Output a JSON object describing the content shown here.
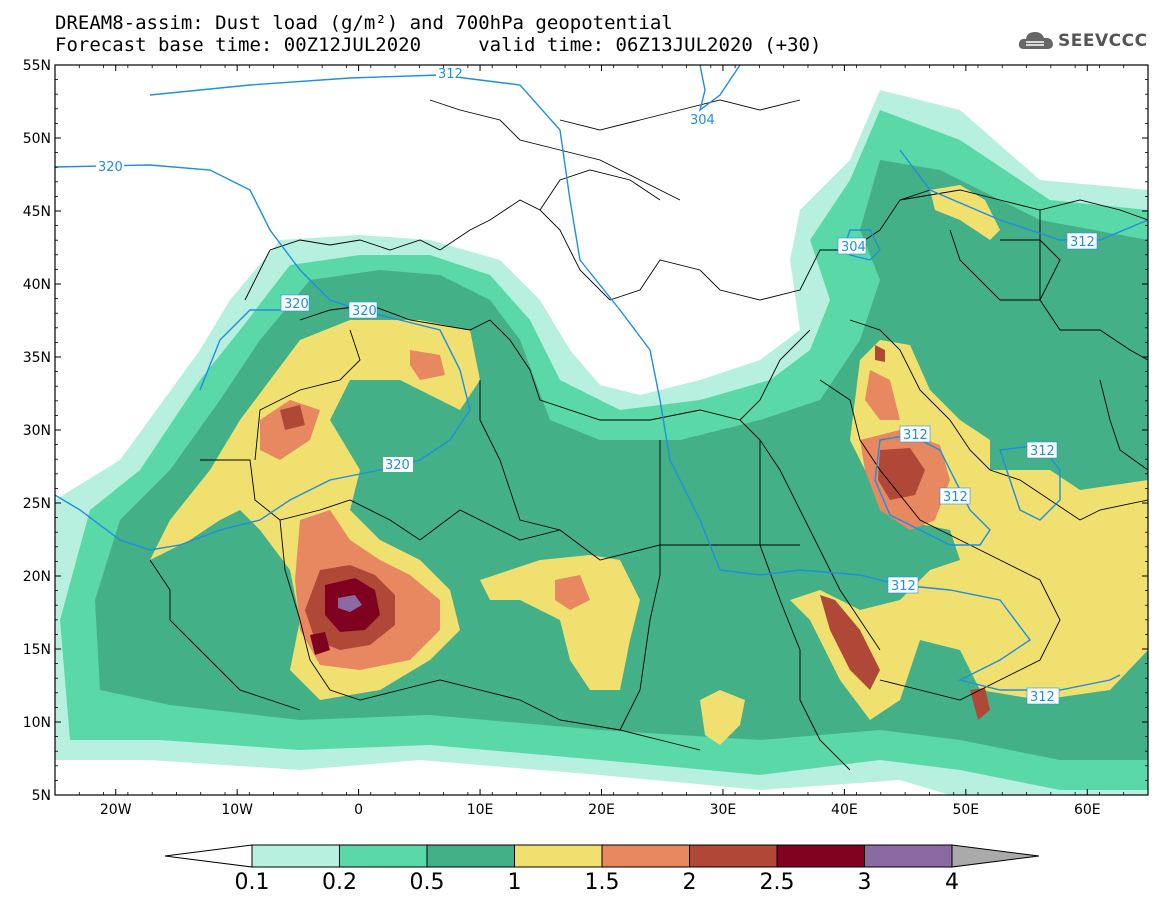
{
  "title": {
    "line1": "DREAM8-assim: Dust load (g/m²) and 700hPa geopotential",
    "line2": "Forecast base time: 00Z12JUL2020     valid time: 06Z13JUL2020 (+30)"
  },
  "logo": {
    "text": "SEEVCCC",
    "icon": "cloud-logo-icon"
  },
  "axes": {
    "lat_labels": [
      "55N",
      "50N",
      "45N",
      "40N",
      "35N",
      "30N",
      "25N",
      "20N",
      "15N",
      "10N",
      "5N"
    ],
    "lon_labels": [
      "20W",
      "10W",
      "0",
      "10E",
      "20E",
      "30E",
      "40E",
      "50E",
      "60E"
    ],
    "lat_range": [
      5,
      55
    ],
    "lon_range": [
      -25,
      65
    ]
  },
  "colorbar": {
    "levels": [
      "0.1",
      "0.2",
      "0.5",
      "1",
      "1.5",
      "2",
      "2.5",
      "3",
      "4"
    ],
    "colors": [
      "#b8f0e0",
      "#5ad8a8",
      "#44b088",
      "#f0e070",
      "#e88860",
      "#b04838",
      "#800020",
      "#8a6aa0"
    ],
    "under_color": "#ffffff",
    "over_color": "#aaaaaa"
  },
  "contour_labels": [
    "312",
    "304",
    "320",
    "320",
    "320",
    "304",
    "312",
    "312",
    "312",
    "312",
    "312",
    "320",
    "312"
  ],
  "colors": {
    "contour_line": "#1e8fe0",
    "border_line": "#000000",
    "dust_levels": {
      "c01": "#b8f0e0",
      "c02": "#5ad8a8",
      "c05": "#44b088",
      "c1": "#f0e070",
      "c15": "#e88860",
      "c2": "#b04838",
      "c25": "#800020",
      "c3": "#8a6aa0"
    }
  }
}
